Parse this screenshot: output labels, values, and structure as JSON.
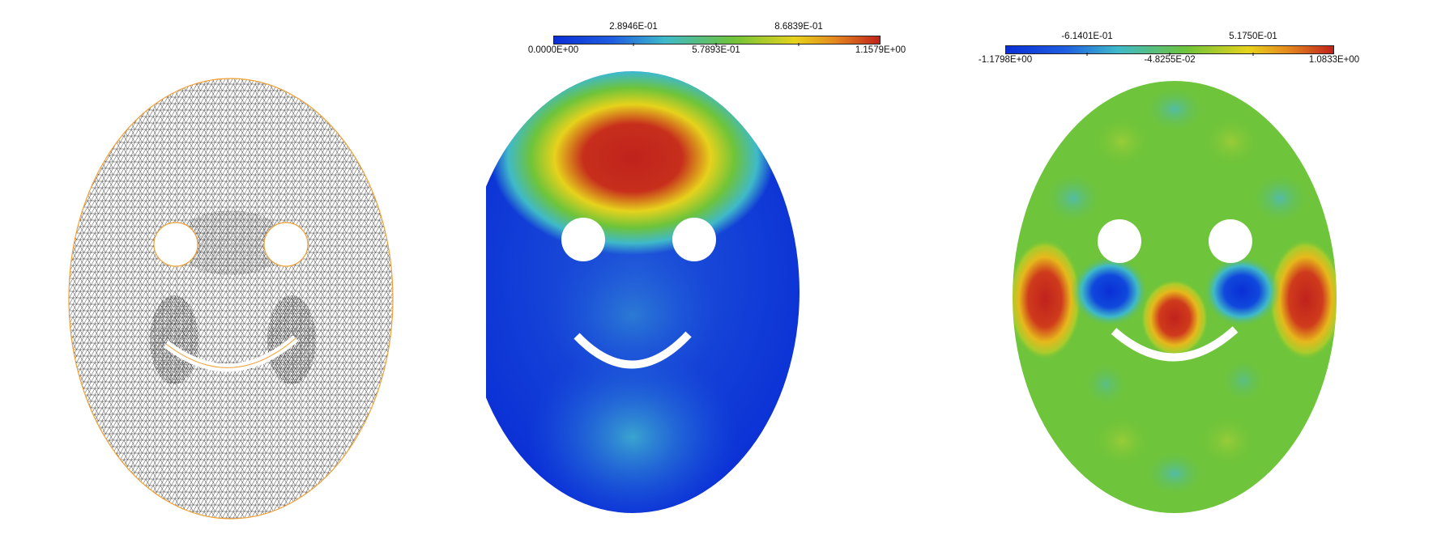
{
  "panels": [
    {
      "name": "mesh-panel"
    },
    {
      "name": "field-panel-1",
      "colorbar": {
        "top_labels": [
          "2.8946E-01",
          "8.6839E-01"
        ],
        "bottom_labels": [
          "0.0000E+00",
          "5.7893E-01",
          "1.1579E+00"
        ]
      }
    },
    {
      "name": "field-panel-2",
      "colorbar": {
        "top_labels": [
          "-6.1401E-01",
          "5.1750E-01"
        ],
        "bottom_labels": [
          "-1.1798E+00",
          "-4.8255E-02",
          "1.0833E+00"
        ]
      }
    }
  ],
  "colors": {
    "mesh_line": "#000000",
    "boundary": "#f2a033",
    "blue": "#0a2fd6",
    "cyan": "#3fb9c9",
    "green": "#6ec43a",
    "yellow": "#e6d21c",
    "red": "#c0221c"
  }
}
